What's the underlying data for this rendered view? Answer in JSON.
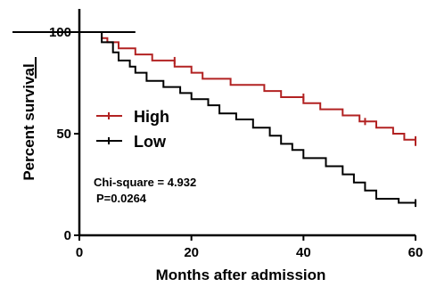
{
  "chart_data": {
    "type": "line",
    "chart_subtype": "kaplan-meier step",
    "title": "",
    "xlabel": "Months after admission",
    "ylabel": "Percent survival",
    "xlim": [
      0,
      60
    ],
    "ylim": [
      0,
      100
    ],
    "x_ticks": [
      "0",
      "20",
      "40",
      "60"
    ],
    "y_ticks": [
      "0",
      "50",
      "100"
    ],
    "grid": false,
    "legend_position": "center-left",
    "series": [
      {
        "name": "High",
        "color": "#b22222",
        "points": [
          [
            0,
            100
          ],
          [
            4,
            100
          ],
          [
            4,
            97
          ],
          [
            5,
            97
          ],
          [
            5,
            95
          ],
          [
            7,
            95
          ],
          [
            7,
            92
          ],
          [
            10,
            92
          ],
          [
            10,
            89
          ],
          [
            13,
            89
          ],
          [
            13,
            86
          ],
          [
            17,
            86
          ],
          [
            17,
            83
          ],
          [
            20,
            83
          ],
          [
            20,
            80
          ],
          [
            22,
            80
          ],
          [
            22,
            77
          ],
          [
            27,
            77
          ],
          [
            27,
            74
          ],
          [
            33,
            74
          ],
          [
            33,
            71
          ],
          [
            36,
            71
          ],
          [
            36,
            68
          ],
          [
            40,
            68
          ],
          [
            40,
            65
          ],
          [
            43,
            65
          ],
          [
            43,
            62
          ],
          [
            47,
            62
          ],
          [
            47,
            59
          ],
          [
            50,
            59
          ],
          [
            50,
            56
          ],
          [
            53,
            56
          ],
          [
            53,
            53
          ],
          [
            56,
            53
          ],
          [
            56,
            50
          ],
          [
            58,
            50
          ],
          [
            58,
            47
          ],
          [
            60,
            47
          ],
          [
            60,
            44
          ]
        ],
        "censor_x": [
          17,
          40,
          51,
          60
        ]
      },
      {
        "name": "Low",
        "color": "#000000",
        "points": [
          [
            0,
            100
          ],
          [
            4,
            100
          ],
          [
            4,
            95
          ],
          [
            6,
            95
          ],
          [
            6,
            90
          ],
          [
            7,
            90
          ],
          [
            7,
            86
          ],
          [
            9,
            86
          ],
          [
            9,
            83
          ],
          [
            10,
            83
          ],
          [
            10,
            80
          ],
          [
            12,
            80
          ],
          [
            12,
            76
          ],
          [
            15,
            76
          ],
          [
            15,
            73
          ],
          [
            18,
            73
          ],
          [
            18,
            70
          ],
          [
            20,
            70
          ],
          [
            20,
            67
          ],
          [
            23,
            67
          ],
          [
            23,
            64
          ],
          [
            25,
            64
          ],
          [
            25,
            60
          ],
          [
            28,
            60
          ],
          [
            28,
            57
          ],
          [
            31,
            57
          ],
          [
            31,
            53
          ],
          [
            34,
            53
          ],
          [
            34,
            49
          ],
          [
            36,
            49
          ],
          [
            36,
            45
          ],
          [
            38,
            45
          ],
          [
            38,
            42
          ],
          [
            40,
            42
          ],
          [
            40,
            38
          ],
          [
            44,
            38
          ],
          [
            44,
            34
          ],
          [
            47,
            34
          ],
          [
            47,
            30
          ],
          [
            49,
            30
          ],
          [
            49,
            26
          ],
          [
            51,
            26
          ],
          [
            51,
            22
          ],
          [
            53,
            22
          ],
          [
            53,
            18
          ],
          [
            57,
            18
          ],
          [
            57,
            16
          ],
          [
            60,
            16
          ],
          [
            60,
            14
          ]
        ],
        "censor_x": [
          60
        ]
      }
    ],
    "annotations": [
      "Chi-square = 4.932",
      "P=0.0264"
    ]
  }
}
